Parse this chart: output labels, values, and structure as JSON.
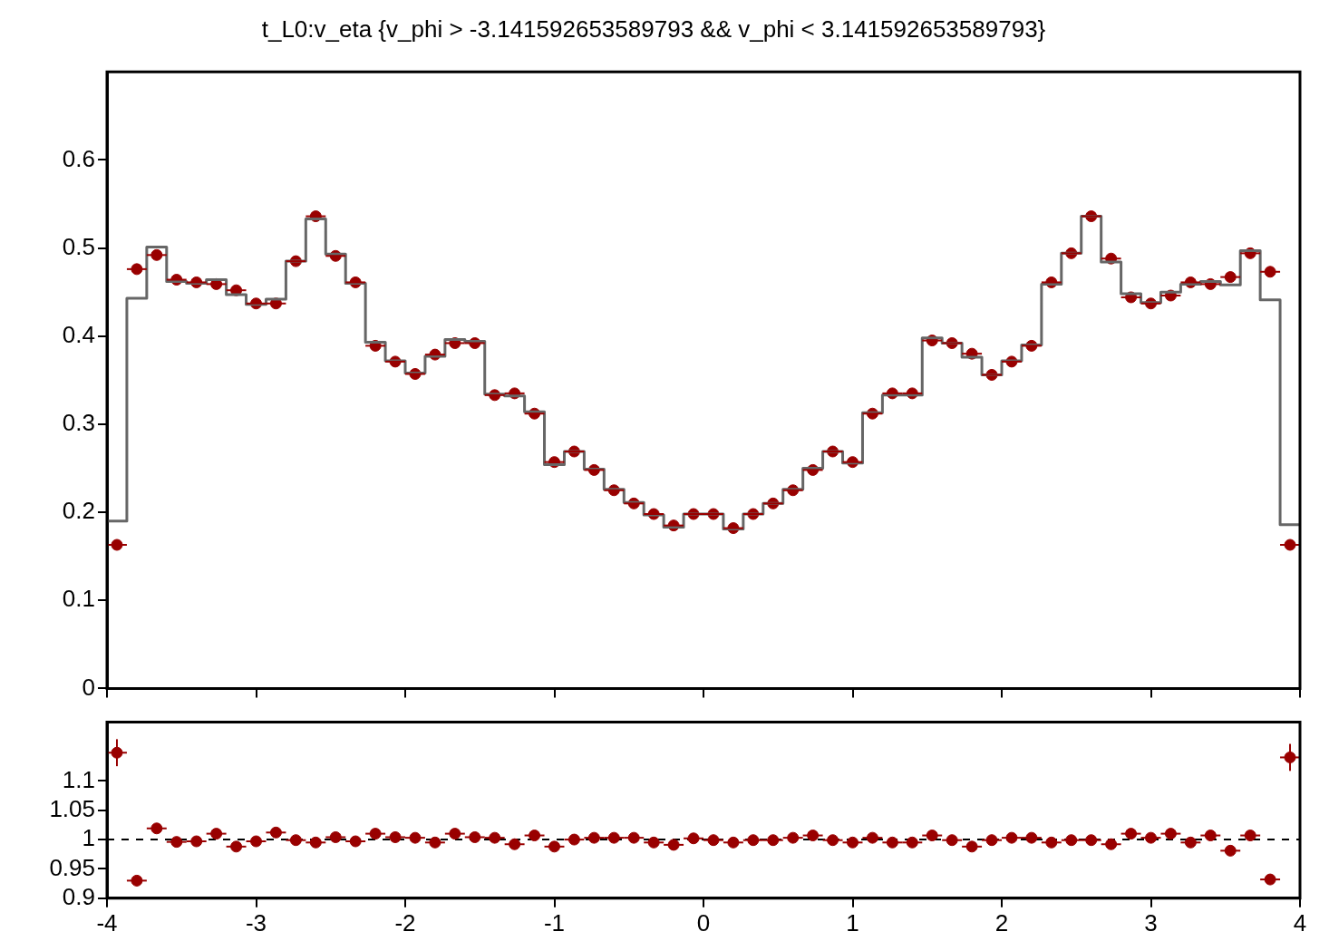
{
  "chart_data": [
    {
      "type": "histogram",
      "title": "t_L0:v_eta {v_phi > -3.141592653589793 && v_phi < 3.141592653589793}",
      "bins": [
        -4,
        -3.8667,
        -3.7333,
        -3.6,
        -3.4667,
        -3.3333,
        -3.2,
        -3.0667,
        -2.9333,
        -2.8,
        -2.6667,
        -2.5333,
        -2.4,
        -2.2667,
        -2.1333,
        -2,
        -1.8667,
        -1.7333,
        -1.6,
        -1.4667,
        -1.3333,
        -1.2,
        -1.0667,
        -0.9333,
        -0.8,
        -0.6667,
        -0.5333,
        -0.4,
        -0.2667,
        -0.1333,
        0,
        0.1333,
        0.2667,
        0.4,
        0.5333,
        0.6667,
        0.8,
        0.9333,
        1.0667,
        1.2,
        1.3333,
        1.4667,
        1.6,
        1.7333,
        1.8667,
        2,
        2.1333,
        2.2667,
        2.4,
        2.5333,
        2.6667,
        2.8,
        2.9333,
        3.0667,
        3.2,
        3.3333,
        3.4667,
        3.6,
        3.7333,
        3.8667,
        4
      ],
      "series": [
        {
          "color": "#666666",
          "values": [
            0.19,
            0.443,
            0.501,
            0.462,
            0.46,
            0.464,
            0.447,
            0.436,
            0.442,
            0.485,
            0.533,
            0.493,
            0.46,
            0.393,
            0.372,
            0.358,
            0.377,
            0.396,
            0.394,
            0.334,
            0.332,
            0.314,
            0.254,
            0.269,
            0.249,
            0.226,
            0.211,
            0.197,
            0.183,
            0.198,
            0.198,
            0.181,
            0.198,
            0.21,
            0.226,
            0.25,
            0.269,
            0.256,
            0.313,
            0.333,
            0.333,
            0.398,
            0.392,
            0.376,
            0.356,
            0.372,
            0.39,
            0.459,
            0.494,
            0.536,
            0.484,
            0.448,
            0.438,
            0.45,
            0.459,
            0.462,
            0.458,
            0.497,
            0.441,
            0.186
          ]
        },
        {
          "type": "scatter",
          "color": "#990000",
          "x": [
            -3.9333,
            -3.8,
            -3.6667,
            -3.5333,
            -3.4,
            -3.2667,
            -3.1333,
            -3,
            -2.8667,
            -2.7333,
            -2.6,
            -2.4667,
            -2.3333,
            -2.2,
            -2.0667,
            -1.9333,
            -1.8,
            -1.6667,
            -1.5333,
            -1.4,
            -1.2667,
            -1.1333,
            -1,
            -0.8667,
            -0.7333,
            -0.6,
            -0.4667,
            -0.3333,
            -0.2,
            -0.0667,
            0.0667,
            0.2,
            0.3333,
            0.4667,
            0.6,
            0.7333,
            0.8667,
            1,
            1.1333,
            1.2667,
            1.4,
            1.5333,
            1.6667,
            1.8,
            1.9333,
            2.0667,
            2.2,
            2.3333,
            2.4667,
            2.6,
            2.7333,
            2.8667,
            3,
            3.1333,
            3.2667,
            3.4,
            3.5333,
            3.6667,
            3.8,
            3.9333
          ],
          "values": [
            0.163,
            0.476,
            0.492,
            0.464,
            0.461,
            0.459,
            0.452,
            0.437,
            0.437,
            0.485,
            0.536,
            0.491,
            0.461,
            0.389,
            0.371,
            0.357,
            0.379,
            0.392,
            0.392,
            0.333,
            0.335,
            0.312,
            0.257,
            0.269,
            0.248,
            0.225,
            0.21,
            0.198,
            0.185,
            0.198,
            0.198,
            0.182,
            0.198,
            0.21,
            0.225,
            0.248,
            0.269,
            0.257,
            0.312,
            0.335,
            0.335,
            0.395,
            0.392,
            0.38,
            0.356,
            0.371,
            0.389,
            0.461,
            0.494,
            0.536,
            0.488,
            0.444,
            0.437,
            0.446,
            0.461,
            0.459,
            0.467,
            0.494,
            0.473,
            0.163
          ],
          "xerrors": [
            0.0667,
            0.0667,
            0.0667,
            0.0667,
            0.0667,
            0.0667,
            0.0667,
            0.0667,
            0.0667,
            0.0667,
            0.0667,
            0.0667,
            0.0667,
            0.0667,
            0.0667,
            0.0667,
            0.0667,
            0.0667,
            0.0667,
            0.0667,
            0.0667,
            0.0667,
            0.0667,
            0.0667,
            0.0667,
            0.0667,
            0.0667,
            0.0667,
            0.0667,
            0.0667,
            0.0667,
            0.0667,
            0.0667,
            0.0667,
            0.0667,
            0.0667,
            0.0667,
            0.0667,
            0.0667,
            0.0667,
            0.0667,
            0.0667,
            0.0667,
            0.0667,
            0.0667,
            0.0667,
            0.0667,
            0.0667,
            0.0667,
            0.0667,
            0.0667,
            0.0667,
            0.0667,
            0.0667,
            0.0667,
            0.0667,
            0.0667,
            0.0667,
            0.0667,
            0.0667
          ]
        }
      ],
      "xlim": [
        -4,
        4
      ],
      "xticks": [
        -4,
        -3,
        -2,
        -1,
        0,
        1,
        2,
        3,
        4
      ],
      "ylim": [
        0,
        0.7
      ],
      "yticks": [
        0,
        0.1,
        0.2,
        0.3,
        0.4,
        0.5,
        0.6
      ],
      "tick_labels": "y",
      "marker": "circle"
    },
    {
      "type": "scatter",
      "color": "#990000",
      "x": [
        -3.9333,
        -3.8,
        -3.6667,
        -3.5333,
        -3.4,
        -3.2667,
        -3.1333,
        -3,
        -2.8667,
        -2.7333,
        -2.6,
        -2.4667,
        -2.3333,
        -2.2,
        -2.0667,
        -1.9333,
        -1.8,
        -1.6667,
        -1.5333,
        -1.4,
        -1.2667,
        -1.1333,
        -1,
        -0.8667,
        -0.7333,
        -0.6,
        -0.4667,
        -0.3333,
        -0.2,
        -0.0667,
        0.0667,
        0.2,
        0.3333,
        0.4667,
        0.6,
        0.7333,
        0.8667,
        1,
        1.1333,
        1.2667,
        1.4,
        1.5333,
        1.6667,
        1.8,
        1.9333,
        2.0667,
        2.2,
        2.3333,
        2.4667,
        2.6,
        2.7333,
        2.8667,
        3,
        3.1333,
        3.2667,
        3.4,
        3.5333,
        3.6667,
        3.8,
        3.9333
      ],
      "values": [
        1.148,
        0.93,
        1.019,
        0.996,
        0.997,
        1.01,
        0.988,
        0.997,
        1.012,
        0.999,
        0.995,
        1.004,
        0.997,
        1.01,
        1.004,
        1.003,
        0.995,
        1.01,
        1.004,
        1.003,
        0.992,
        1.007,
        0.988,
        1,
        1.003,
        1.003,
        1.003,
        0.995,
        0.991,
        1.002,
        0.999,
        0.995,
        0.999,
        0.999,
        1.003,
        1.007,
        0.999,
        0.995,
        1.003,
        0.995,
        0.995,
        1.007,
        0.999,
        0.988,
        0.999,
        1.003,
        1.003,
        0.995,
        0.999,
        0.999,
        0.992,
        1.01,
        1.003,
        1.01,
        0.995,
        1.007,
        0.981,
        1.007,
        0.932,
        1.14
      ],
      "errors": [
        0.023,
        null,
        null,
        null,
        null,
        null,
        null,
        null,
        null,
        null,
        null,
        null,
        null,
        null,
        null,
        null,
        null,
        null,
        null,
        null,
        null,
        null,
        null,
        null,
        null,
        null,
        null,
        null,
        null,
        null,
        null,
        null,
        null,
        null,
        null,
        null,
        null,
        null,
        null,
        null,
        null,
        null,
        null,
        null,
        null,
        null,
        null,
        null,
        null,
        null,
        null,
        null,
        null,
        null,
        null,
        null,
        null,
        null,
        null,
        0.023
      ],
      "xerrors": [
        0.0667,
        0.0667,
        0.0667,
        0.0667,
        0.0667,
        0.0667,
        0.0667,
        0.0667,
        0.0667,
        0.0667,
        0.0667,
        0.0667,
        0.0667,
        0.0667,
        0.0667,
        0.0667,
        0.0667,
        0.0667,
        0.0667,
        0.0667,
        0.0667,
        0.0667,
        0.0667,
        0.0667,
        0.0667,
        0.0667,
        0.0667,
        0.0667,
        0.0667,
        0.0667,
        0.0667,
        0.0667,
        0.0667,
        0.0667,
        0.0667,
        0.0667,
        0.0667,
        0.0667,
        0.0667,
        0.0667,
        0.0667,
        0.0667,
        0.0667,
        0.0667,
        0.0667,
        0.0667,
        0.0667,
        0.0667,
        0.0667,
        0.0667,
        0.0667,
        0.0667,
        0.0667,
        0.0667,
        0.0667,
        0.0667,
        0.0667,
        0.0667,
        0.0667,
        0.0667
      ],
      "xlim": [
        -4,
        4
      ],
      "xticks": [
        -4,
        -3,
        -2,
        -1,
        0,
        1,
        2,
        3,
        4
      ],
      "ylim": [
        0.9,
        1.2
      ],
      "yticks": [
        0.9,
        0.95,
        1,
        1.05,
        1.1
      ],
      "marker": "circle",
      "ref_lines": [
        {
          "axis": "y",
          "value": 1,
          "line_style": "dashed",
          "color": "#000000"
        }
      ]
    }
  ]
}
